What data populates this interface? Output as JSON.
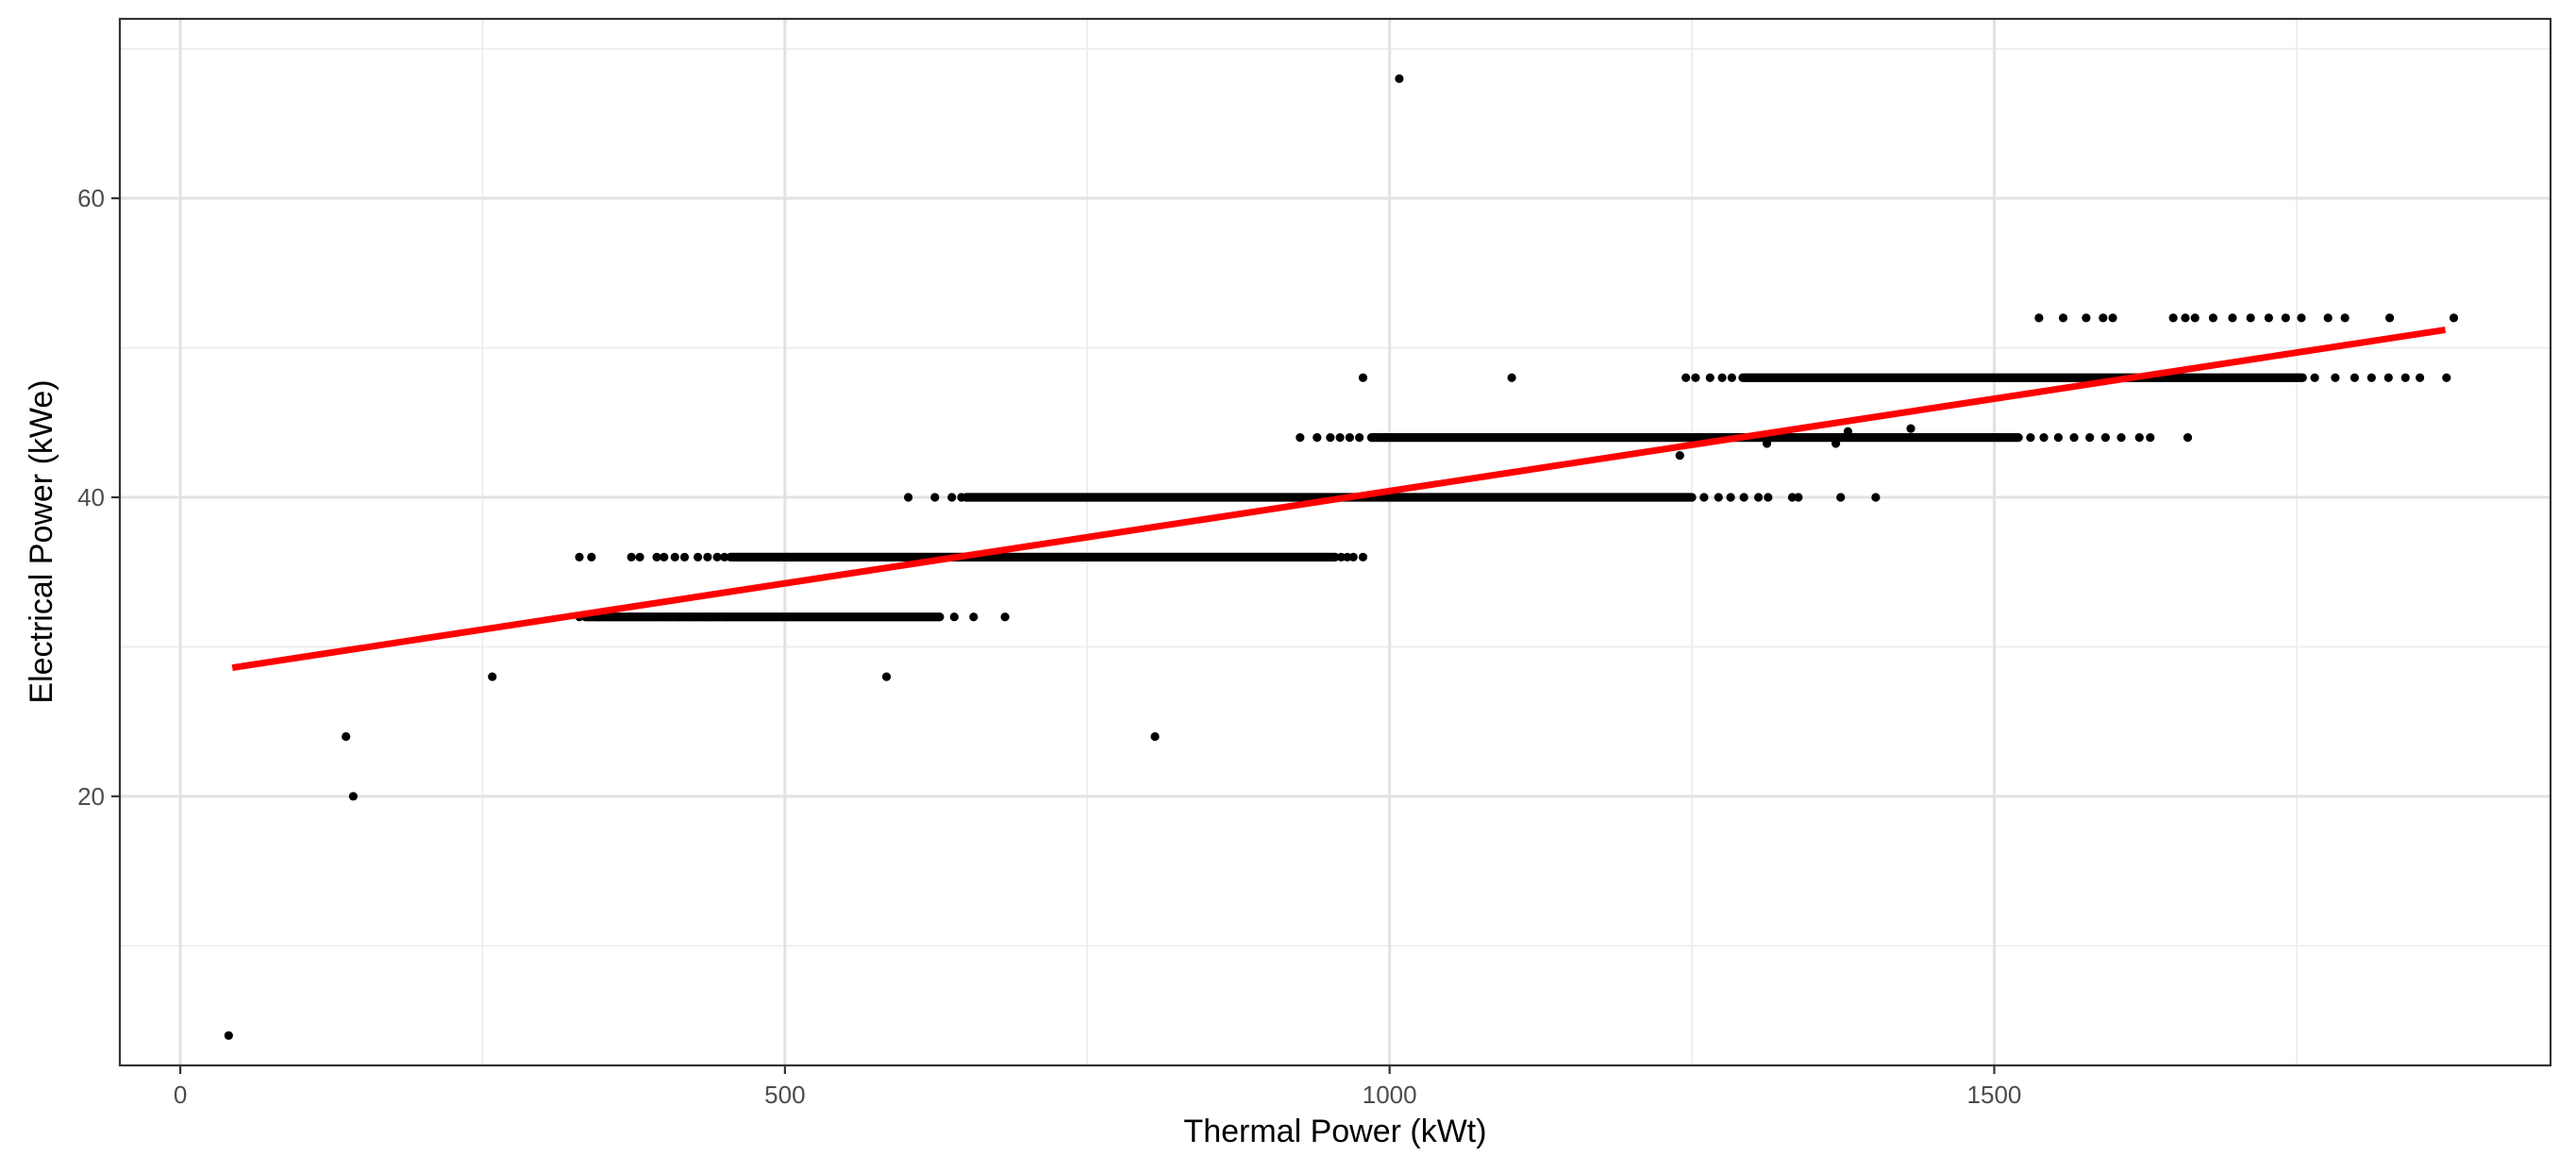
{
  "chart_data": {
    "type": "scatter",
    "title": "",
    "xlabel": "Thermal Power (kWt)",
    "ylabel": "Electrical Power (kWe)",
    "xlim": [
      -50,
      1960
    ],
    "ylim": [
      2,
      72
    ],
    "x_ticks": [
      0,
      500,
      1000,
      1500
    ],
    "x_tick_labels": [
      "0",
      "500",
      "1000",
      "1500"
    ],
    "x_minor_grid": [
      250,
      750,
      1250,
      1750
    ],
    "y_ticks": [
      20,
      40,
      60
    ],
    "y_tick_labels": [
      "20",
      "40",
      "60"
    ],
    "y_minor_grid": [
      10,
      30,
      50,
      70
    ],
    "grid": true,
    "legend": "none",
    "point_color": "#000000",
    "isolated_points": [
      [
        40,
        4
      ],
      [
        137,
        24
      ],
      [
        143,
        20
      ],
      [
        258,
        28
      ],
      [
        584,
        28
      ],
      [
        806,
        24
      ],
      [
        1008,
        68
      ],
      [
        978,
        48
      ],
      [
        1101,
        48
      ],
      [
        1240,
        42.8
      ],
      [
        1278,
        44
      ],
      [
        1312,
        43.6
      ],
      [
        1369,
        43.6
      ],
      [
        1379,
        44.4
      ],
      [
        1431,
        44.6
      ]
    ],
    "horizontal_bands": [
      {
        "y": 32,
        "x_start": 335,
        "x_end": 628,
        "sparse_points": [
          330,
          345,
          355,
          365,
          372,
          378,
          385,
          393,
          402,
          412,
          424,
          438,
          452,
          640,
          656,
          682
        ]
      },
      {
        "y": 36,
        "x_start": 455,
        "x_end": 955,
        "sparse_points": [
          330,
          340,
          373,
          380,
          394,
          400,
          409,
          417,
          428,
          436,
          444,
          450,
          960,
          965,
          970,
          978
        ]
      },
      {
        "y": 40,
        "x_start": 650,
        "x_end": 1250,
        "sparse_points": [
          602,
          624,
          638,
          646,
          1260,
          1272,
          1282,
          1293,
          1305,
          1313,
          1333,
          1338,
          1373,
          1402
        ]
      },
      {
        "y": 44,
        "x_start": 985,
        "x_end": 1520,
        "sparse_points": [
          926,
          940,
          951,
          959,
          967,
          975,
          1530,
          1541,
          1553,
          1566,
          1579,
          1592,
          1605,
          1620,
          1629,
          1660
        ]
      },
      {
        "y": 48,
        "x_start": 1292,
        "x_end": 1755,
        "sparse_points": [
          1245,
          1253,
          1265,
          1275,
          1283,
          1765,
          1782,
          1798,
          1812,
          1826,
          1840,
          1852,
          1874
        ]
      },
      {
        "y": 52,
        "x_start": 0,
        "x_end": 0,
        "sparse_points": [
          1537,
          1557,
          1576,
          1590,
          1598,
          1648,
          1658,
          1666,
          1681,
          1697,
          1712,
          1727,
          1741,
          1754,
          1776,
          1790,
          1827,
          1880
        ]
      }
    ],
    "fit_line": {
      "color": "#ff0000",
      "x": [
        43,
        1873
      ],
      "y": [
        28.6,
        51.2
      ]
    }
  }
}
